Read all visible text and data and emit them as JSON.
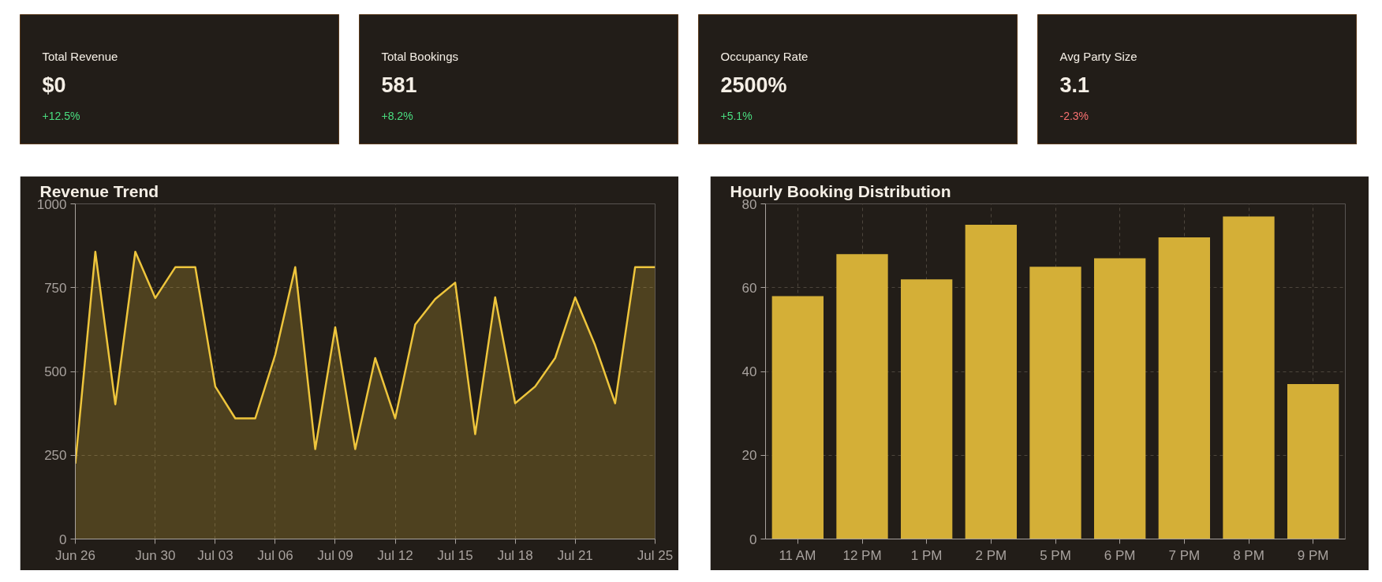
{
  "chart_data": [
    {
      "type": "other",
      "title": "Total Revenue",
      "annotations": [
        "$0",
        "+12.5%"
      ],
      "color": "#4ade80"
    },
    {
      "type": "other",
      "title": "Total Bookings",
      "annotations": [
        "581",
        "+8.2%"
      ],
      "color": "#4ade80"
    },
    {
      "type": "other",
      "title": "Occupancy Rate",
      "annotations": [
        "2500%",
        "+5.1%"
      ],
      "color": "#4ade80"
    },
    {
      "type": "other",
      "title": "Avg Party Size",
      "annotations": [
        "3.1",
        "-2.3%"
      ],
      "color": "#f87171"
    },
    {
      "type": "area",
      "title": "Revenue Trend",
      "categories": [
        "Jun 26",
        null,
        null,
        null,
        "Jun 30",
        null,
        null,
        "Jul 03",
        null,
        null,
        "Jul 06",
        null,
        null,
        "Jul 09",
        null,
        null,
        "Jul 12",
        null,
        null,
        "Jul 15",
        null,
        null,
        "Jul 18",
        null,
        null,
        "Jul 21",
        null,
        null,
        null,
        "Jul 25"
      ],
      "series": [
        {
          "color": "#eec53c",
          "values": [
            225,
            857,
            402,
            857,
            719,
            811,
            811,
            455,
            360,
            360,
            550,
            811,
            268,
            632,
            268,
            540,
            360,
            640,
            716,
            765,
            313,
            721,
            405,
            455,
            540,
            721,
            578,
            405,
            811,
            811
          ]
        }
      ],
      "ylim": [
        0,
        1000
      ],
      "yticks": [
        0,
        250,
        500,
        750,
        1000
      ],
      "grid": true
    },
    {
      "type": "bar",
      "title": "Hourly Booking Distribution",
      "categories": [
        "11 AM",
        "12 PM",
        "1 PM",
        "2 PM",
        "5 PM",
        "6 PM",
        "7 PM",
        "8 PM",
        "9 PM"
      ],
      "series": [
        {
          "color": "#d4af37",
          "values": [
            58,
            68,
            62,
            75,
            65,
            67,
            72,
            77,
            37
          ]
        }
      ],
      "ylim": [
        0,
        80
      ],
      "yticks": [
        0,
        20,
        40,
        60,
        80
      ],
      "grid": true
    }
  ]
}
